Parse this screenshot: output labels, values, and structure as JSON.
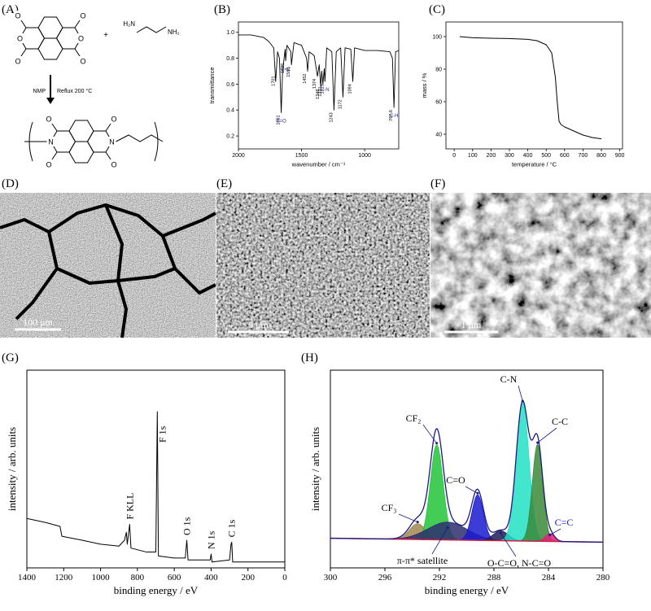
{
  "panel_labels": [
    "(A)",
    "(B)",
    "(C)",
    "(D)",
    "(E)",
    "(F)",
    "(G)",
    "(H)"
  ],
  "scheme": {
    "top_atoms": [
      "O",
      "O",
      "O",
      "O",
      "O",
      "O"
    ],
    "amine": [
      "H₂N",
      "NH₂"
    ],
    "plus": "+",
    "conditions": [
      "NMP",
      "Reflux 200 °C"
    ],
    "product_atoms": [
      "O",
      "O",
      "O",
      "O",
      "N",
      "N"
    ]
  },
  "micrographs": [
    {
      "scale_bar": "100 μm"
    },
    {
      "scale_bar": "5 μm"
    },
    {
      "scale_bar": "1 μm"
    }
  ],
  "chart_data": [
    {
      "type": "line",
      "x_label": "wavenumber / cm⁻¹",
      "y_label": "transmittance",
      "x": [
        2000,
        1900,
        1800,
        1760,
        1720,
        1705,
        1690,
        1675,
        1661,
        1650,
        1630,
        1626,
        1615,
        1585,
        1580,
        1560,
        1500,
        1460,
        1452,
        1440,
        1400,
        1380,
        1374,
        1360,
        1348,
        1340,
        1331,
        1320,
        1315,
        1300,
        1260,
        1243,
        1225,
        1190,
        1172,
        1155,
        1110,
        1094,
        1080,
        1000,
        900,
        800,
        780,
        767.6,
        755,
        730
      ],
      "series": [
        {
          "color": "#000000",
          "values": [
            0.98,
            0.98,
            0.96,
            0.93,
            0.88,
            0.62,
            0.85,
            0.8,
            0.38,
            0.7,
            0.87,
            0.78,
            0.9,
            0.85,
            0.75,
            0.92,
            0.9,
            0.8,
            0.7,
            0.85,
            0.82,
            0.7,
            0.66,
            0.75,
            0.58,
            0.7,
            0.6,
            0.72,
            0.62,
            0.88,
            0.85,
            0.4,
            0.85,
            0.88,
            0.5,
            0.88,
            0.87,
            0.62,
            0.88,
            0.86,
            0.86,
            0.85,
            0.8,
            0.42,
            0.85,
            0.86
          ]
        }
      ],
      "xlim": [
        2000,
        730
      ],
      "ylim": [
        0.1,
        1.08
      ],
      "xticks": [
        2000,
        1500,
        1000
      ],
      "yticks": [
        0.2,
        0.4,
        0.6,
        0.8,
        {
          "value": 1,
          "label": "1.0"
        }
      ],
      "peak_labels": [
        1701,
        1661,
        1626,
        1580,
        1452,
        1374,
        1348,
        1331,
        1315,
        1243,
        1172,
        1094,
        767.6
      ],
      "group_labels": [
        {
          "text": "C=O",
          "x": 1661
        },
        {
          "text": "C=C",
          "x": 1626
        },
        {
          "text": "C-N",
          "x": 1315
        },
        {
          "text": "C-H",
          "x": 767.6
        }
      ],
      "group_color": "#2a2aa0"
    },
    {
      "type": "line",
      "x_label": "temperature / °C",
      "y_label": "mass / %",
      "x": [
        30,
        100,
        200,
        300,
        400,
        450,
        500,
        530,
        550,
        560,
        570,
        580,
        600,
        650,
        700,
        750,
        800
      ],
      "series": [
        {
          "color": "#000000",
          "values": [
            100,
            99.3,
            99,
            98.8,
            98.3,
            97.5,
            95,
            90,
            75,
            60,
            48,
            46,
            44.5,
            42,
            39.5,
            38,
            37.2
          ]
        }
      ],
      "xlim": [
        -45,
        915
      ],
      "ylim": [
        31,
        109
      ],
      "xticks": [
        0,
        100,
        200,
        300,
        400,
        500,
        600,
        700,
        800,
        900
      ],
      "yticks": [
        40,
        60,
        80,
        100
      ]
    },
    {
      "type": "line",
      "x_label": "binding energy / eV",
      "y_label": "intensity / arb. units",
      "x": [
        1400,
        1300,
        1220,
        1210,
        1100,
        1000,
        900,
        870,
        860,
        855,
        842,
        835,
        750,
        700,
        692,
        686,
        600,
        540,
        532,
        525,
        405,
        400,
        395,
        300,
        292,
        288,
        283,
        100,
        0
      ],
      "series": [
        {
          "color": "#000000",
          "values": [
            25,
            23,
            21,
            16,
            14,
            12,
            11,
            14,
            18,
            12,
            22,
            10,
            8,
            8,
            79,
            6,
            5,
            5,
            14,
            4,
            4,
            7,
            3,
            4,
            12,
            13,
            3,
            3,
            3
          ]
        }
      ],
      "xlim": [
        1400,
        0
      ],
      "ylim": [
        0,
        100
      ],
      "xticks": [
        1400,
        1200,
        1000,
        800,
        600,
        400,
        200,
        0
      ],
      "annotations": [
        {
          "text": "F KLL",
          "x": 842
        },
        {
          "text": "F 1s",
          "x": 692
        },
        {
          "text": "O 1s",
          "x": 532
        },
        {
          "text": "N 1s",
          "x": 400
        },
        {
          "text": "C 1s",
          "x": 290
        }
      ]
    },
    {
      "type": "peak_fit",
      "x_label": "binding energy / eV",
      "y_label": "intensity / arb. units",
      "xlim": [
        300,
        280
      ],
      "ylim": [
        0,
        100
      ],
      "xticks": [
        300,
        296,
        292,
        288,
        284,
        280
      ],
      "baseline": {
        "x": [
          300,
          280
        ],
        "values": [
          15,
          13
        ],
        "color": "#d0204a"
      },
      "envelope_color": "#1a1a80",
      "components": [
        {
          "name": "CF₃",
          "center": 293.6,
          "height": 8,
          "fwhm": 1.4,
          "color": "#a08850"
        },
        {
          "name": "CF₂",
          "center": 292.2,
          "height": 48,
          "fwhm": 1.1,
          "color": "#22c43a"
        },
        {
          "name": "π-π* satellite",
          "center": 291.4,
          "height": 9,
          "fwhm": 3.4,
          "color": "#2e2e6e"
        },
        {
          "name": "C=O",
          "center": 289.2,
          "height": 23,
          "fwhm": 1.0,
          "color": "#1a1ad0"
        },
        {
          "name": "O-C=O, N-C=O",
          "center": 287.5,
          "height": 5,
          "fwhm": 1.3,
          "color": "#202058"
        },
        {
          "name": "C-N",
          "center": 285.9,
          "height": 70,
          "fwhm": 1.1,
          "color": "#22e0c4"
        },
        {
          "name": "C-C",
          "center": 284.8,
          "height": 49,
          "fwhm": 0.9,
          "color": "#3a8a3a"
        },
        {
          "name": "C=C",
          "center": 283.9,
          "height": 4,
          "fwhm": 0.8,
          "color": "#e0207a"
        }
      ]
    }
  ]
}
